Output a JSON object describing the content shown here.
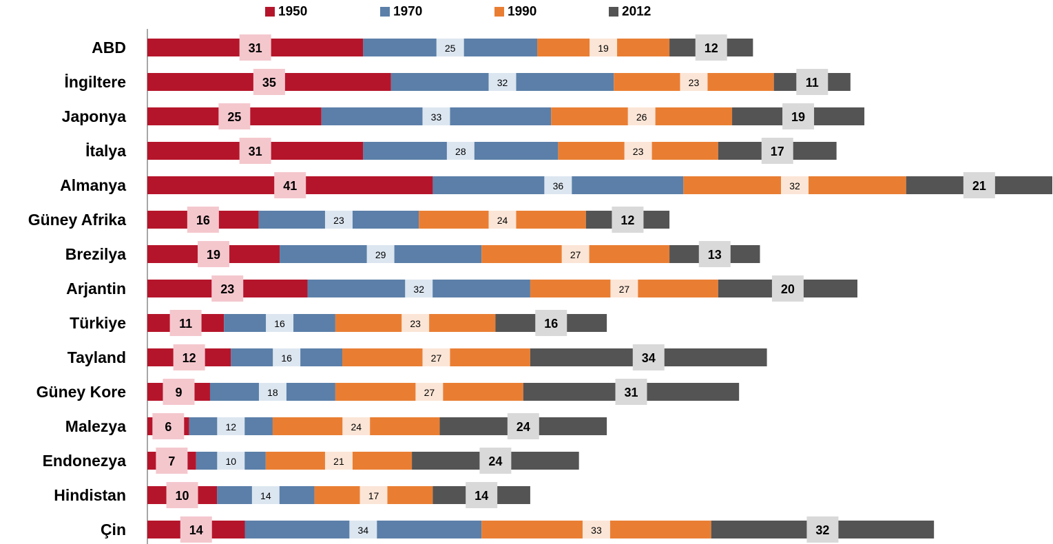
{
  "chart_data": {
    "type": "stacked-bar-horizontal",
    "categories": [
      "ABD",
      "İngiltere",
      "Japonya",
      "İtalya",
      "Almanya",
      "Güney Afrika",
      "Brezilya",
      "Arjantin",
      "Türkiye",
      "Tayland",
      "Güney Kore",
      "Malezya",
      "Endonezya",
      "Hindistan",
      "Çin"
    ],
    "series": [
      {
        "name": "1950",
        "color": "#b5152b",
        "values": [
          31,
          35,
          25,
          31,
          41,
          16,
          19,
          23,
          11,
          12,
          9,
          6,
          7,
          10,
          14
        ]
      },
      {
        "name": "1970",
        "color": "#5b7fa8",
        "values": [
          25,
          32,
          33,
          28,
          36,
          23,
          29,
          32,
          16,
          16,
          18,
          12,
          10,
          14,
          34
        ]
      },
      {
        "name": "1990",
        "color": "#e97e33",
        "values": [
          19,
          23,
          26,
          23,
          32,
          24,
          27,
          27,
          23,
          27,
          27,
          24,
          21,
          17,
          33
        ]
      },
      {
        "name": "2012",
        "color": "#545454",
        "values": [
          12,
          11,
          19,
          17,
          21,
          12,
          13,
          20,
          16,
          34,
          31,
          24,
          24,
          14,
          32
        ]
      }
    ],
    "legend": "top"
  }
}
